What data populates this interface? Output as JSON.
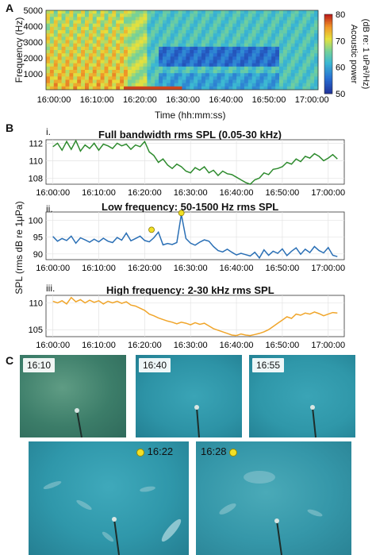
{
  "panels": {
    "a": "A",
    "b": "B",
    "c": "C"
  },
  "spectrogram": {
    "ylabel": "Frequency (Hz)",
    "xlabel": "Time (hh:mm:ss)",
    "yticks": [
      "5000",
      "4000",
      "3000",
      "2000",
      "1000"
    ],
    "xticks": [
      "16:00:00",
      "16:10:00",
      "16:20:00",
      "16:30:00",
      "16:40:00",
      "16:50:00",
      "17:00:00"
    ],
    "colorbar_ticks": [
      "80",
      "70",
      "60",
      "50"
    ],
    "colorbar_label_line1": "Acoustic power",
    "colorbar_label_line2": "(dB re: 1 uPa²/Hz)"
  },
  "spl": {
    "ylabel": "SPL (rms dB re 1μPa)",
    "xticks": [
      "16:00:00",
      "16:10:00",
      "16:20:00",
      "16:30:00",
      "16:40:00",
      "16:50:00",
      "17:00:00"
    ]
  },
  "chart_data": [
    {
      "type": "line",
      "roman": "i.",
      "title": "Full bandwidth rms SPL (0.05-30 kHz)",
      "color": "#2e8b2e",
      "x": [
        "16:00:00",
        "16:01:00",
        "16:02:00",
        "16:03:00",
        "16:04:00",
        "16:05:00",
        "16:06:00",
        "16:07:00",
        "16:08:00",
        "16:09:00",
        "16:10:00",
        "16:11:00",
        "16:12:00",
        "16:13:00",
        "16:14:00",
        "16:15:00",
        "16:16:00",
        "16:17:00",
        "16:18:00",
        "16:19:00",
        "16:20:00",
        "16:21:00",
        "16:22:00",
        "16:23:00",
        "16:24:00",
        "16:25:00",
        "16:26:00",
        "16:27:00",
        "16:28:00",
        "16:29:00",
        "16:30:00",
        "16:31:00",
        "16:32:00",
        "16:33:00",
        "16:34:00",
        "16:35:00",
        "16:36:00",
        "16:37:00",
        "16:38:00",
        "16:39:00",
        "16:40:00",
        "16:41:00",
        "16:42:00",
        "16:43:00",
        "16:44:00",
        "16:45:00",
        "16:46:00",
        "16:47:00",
        "16:48:00",
        "16:49:00",
        "16:50:00",
        "16:51:00",
        "16:52:00",
        "16:53:00",
        "16:54:00",
        "16:55:00",
        "16:56:00",
        "16:57:00",
        "16:58:00",
        "16:59:00",
        "17:00:00",
        "17:01:00",
        "17:02:00"
      ],
      "values": [
        111.6,
        112.0,
        111.2,
        112.2,
        111.3,
        112.3,
        111.1,
        111.8,
        111.4,
        112.0,
        111.2,
        111.9,
        111.7,
        111.4,
        112.0,
        111.7,
        111.9,
        111.3,
        111.8,
        111.6,
        112.2,
        111.0,
        110.6,
        109.8,
        110.2,
        109.5,
        109.1,
        109.6,
        109.3,
        108.8,
        108.6,
        109.2,
        108.9,
        109.3,
        108.6,
        108.9,
        108.3,
        108.8,
        108.5,
        108.4,
        108.1,
        107.8,
        107.5,
        107.3,
        107.8,
        108.0,
        108.6,
        108.4,
        109.0,
        109.1,
        109.3,
        109.8,
        109.6,
        110.2,
        109.9,
        110.5,
        110.3,
        110.8,
        110.5,
        110.0,
        110.3,
        110.7,
        110.2
      ],
      "ylim": [
        107.3,
        112.4
      ],
      "yticks": [
        "112",
        "110",
        "108"
      ],
      "ytick_values": [
        112,
        110,
        108
      ]
    },
    {
      "type": "line",
      "roman": "ii.",
      "title": "Low frequency: 50-1500 Hz rms SPL",
      "color": "#2a6fb5",
      "x": [
        "16:00:00",
        "16:01:00",
        "16:02:00",
        "16:03:00",
        "16:04:00",
        "16:05:00",
        "16:06:00",
        "16:07:00",
        "16:08:00",
        "16:09:00",
        "16:10:00",
        "16:11:00",
        "16:12:00",
        "16:13:00",
        "16:14:00",
        "16:15:00",
        "16:16:00",
        "16:17:00",
        "16:18:00",
        "16:19:00",
        "16:20:00",
        "16:21:00",
        "16:22:00",
        "16:23:00",
        "16:24:00",
        "16:25:00",
        "16:26:00",
        "16:27:00",
        "16:28:00",
        "16:29:00",
        "16:30:00",
        "16:31:00",
        "16:32:00",
        "16:33:00",
        "16:34:00",
        "16:35:00",
        "16:36:00",
        "16:37:00",
        "16:38:00",
        "16:39:00",
        "16:40:00",
        "16:41:00",
        "16:42:00",
        "16:43:00",
        "16:44:00",
        "16:45:00",
        "16:46:00",
        "16:47:00",
        "16:48:00",
        "16:49:00",
        "16:50:00",
        "16:51:00",
        "16:52:00",
        "16:53:00",
        "16:54:00",
        "16:55:00",
        "16:56:00",
        "16:57:00",
        "16:58:00",
        "16:59:00",
        "17:00:00",
        "17:01:00",
        "17:02:00"
      ],
      "values": [
        95.2,
        93.8,
        94.6,
        94.0,
        95.3,
        93.2,
        94.8,
        94.2,
        93.5,
        94.4,
        93.6,
        94.7,
        93.8,
        93.4,
        94.9,
        94.1,
        96.2,
        93.9,
        94.6,
        95.3,
        94.0,
        93.6,
        94.8,
        96.5,
        92.7,
        93.1,
        92.8,
        93.4,
        101.8,
        94.6,
        93.2,
        92.6,
        93.5,
        94.2,
        93.8,
        92.2,
        91.0,
        90.6,
        91.4,
        90.5,
        89.7,
        90.2,
        89.8,
        89.4,
        90.5,
        88.8,
        91.2,
        89.6,
        90.8,
        90.2,
        91.5,
        89.5,
        90.8,
        91.8,
        89.9,
        91.4,
        90.4,
        92.2,
        91.0,
        90.3,
        91.9,
        89.6,
        89.2
      ],
      "ylim": [
        88.3,
        102.5
      ],
      "yticks": [
        "100",
        "95",
        "90"
      ],
      "ytick_values": [
        100,
        95,
        90
      ],
      "highlights": [
        {
          "x": "16:21:30",
          "y": 97.2,
          "color": "#f2e026"
        },
        {
          "x": "16:28:00",
          "y": 102.2,
          "color": "#f2e026"
        }
      ]
    },
    {
      "type": "line",
      "roman": "iii.",
      "title": "High frequency: 2-30 kHz rms SPL",
      "color": "#f0a52a",
      "x": [
        "16:00:00",
        "16:01:00",
        "16:02:00",
        "16:03:00",
        "16:04:00",
        "16:05:00",
        "16:06:00",
        "16:07:00",
        "16:08:00",
        "16:09:00",
        "16:10:00",
        "16:11:00",
        "16:12:00",
        "16:13:00",
        "16:14:00",
        "16:15:00",
        "16:16:00",
        "16:17:00",
        "16:18:00",
        "16:19:00",
        "16:20:00",
        "16:21:00",
        "16:22:00",
        "16:23:00",
        "16:24:00",
        "16:25:00",
        "16:26:00",
        "16:27:00",
        "16:28:00",
        "16:29:00",
        "16:30:00",
        "16:31:00",
        "16:32:00",
        "16:33:00",
        "16:34:00",
        "16:35:00",
        "16:36:00",
        "16:37:00",
        "16:38:00",
        "16:39:00",
        "16:40:00",
        "16:41:00",
        "16:42:00",
        "16:43:00",
        "16:44:00",
        "16:45:00",
        "16:46:00",
        "16:47:00",
        "16:48:00",
        "16:49:00",
        "16:50:00",
        "16:51:00",
        "16:52:00",
        "16:53:00",
        "16:54:00",
        "16:55:00",
        "16:56:00",
        "16:57:00",
        "16:58:00",
        "16:59:00",
        "17:00:00",
        "17:01:00",
        "17:02:00"
      ],
      "values": [
        110.3,
        110.0,
        110.4,
        109.8,
        111.0,
        110.2,
        110.6,
        110.0,
        110.5,
        110.1,
        110.4,
        109.8,
        110.3,
        110.0,
        110.3,
        109.9,
        110.2,
        109.6,
        109.4,
        109.0,
        108.6,
        107.9,
        107.6,
        107.2,
        106.9,
        106.6,
        106.4,
        106.1,
        106.4,
        106.2,
        105.9,
        106.3,
        106.0,
        106.2,
        105.7,
        105.2,
        104.9,
        104.6,
        104.3,
        104.0,
        103.9,
        104.2,
        104.0,
        103.9,
        104.1,
        104.3,
        104.6,
        105.0,
        105.6,
        106.2,
        106.8,
        107.4,
        107.1,
        107.9,
        107.7,
        108.1,
        107.9,
        108.3,
        108.0,
        107.6,
        107.9,
        108.2,
        108.1
      ],
      "ylim": [
        103.7,
        111.4
      ],
      "yticks": [
        "110",
        "105"
      ],
      "ytick_values": [
        110,
        105
      ]
    }
  ],
  "photos": [
    {
      "label": "16:10"
    },
    {
      "label": "16:40"
    },
    {
      "label": "16:55"
    },
    {
      "label": "16:22"
    },
    {
      "label": "16:28"
    }
  ]
}
